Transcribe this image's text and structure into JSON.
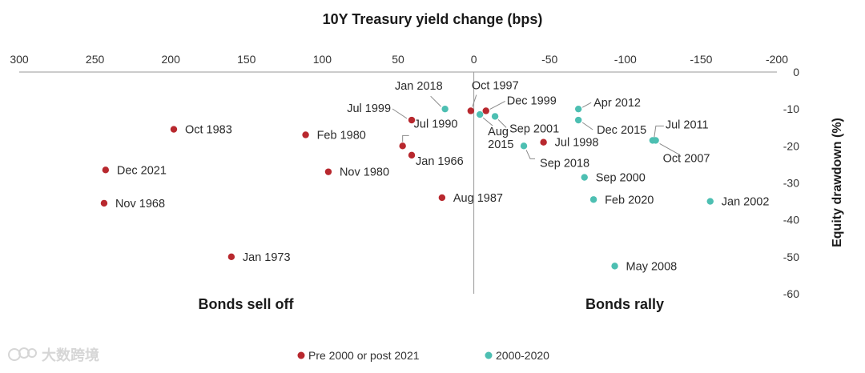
{
  "chart_data": {
    "type": "scatter",
    "title": "10Y Treasury yield change (bps)",
    "xlabel": "10Y Treasury yield change (bps)",
    "ylabel": "Equity drawdown (%)",
    "xlim": [
      300,
      -200
    ],
    "ylim": [
      -60,
      0
    ],
    "x_ticks": [
      "300",
      "250",
      "200",
      "150",
      "100",
      "50",
      "0",
      "-50",
      "-100",
      "-150",
      "-200"
    ],
    "y_ticks": [
      "0",
      "-10",
      "-20",
      "-30",
      "-40",
      "-50",
      "-60"
    ],
    "region_labels": {
      "left": "Bonds sell off",
      "right": "Bonds rally"
    },
    "legend": [
      {
        "name": "Pre 2000 or post 2021",
        "color": "#b8282e"
      },
      {
        "name": "2000-2020",
        "color": "#4dbfb2"
      }
    ],
    "series": [
      {
        "name": "Pre 2000 or post 2021",
        "color": "#b8282e",
        "points": [
          {
            "label": "Oct 1983",
            "x": 198,
            "y": -15.5
          },
          {
            "label": "Feb 1980",
            "x": 111,
            "y": -17
          },
          {
            "label": "Dec 2021",
            "x": 243,
            "y": -26.5
          },
          {
            "label": "Nov 1980",
            "x": 96,
            "y": -27
          },
          {
            "label": "Nov 1968",
            "x": 244,
            "y": -35.5
          },
          {
            "label": "Jan 1973",
            "x": 160,
            "y": -50
          },
          {
            "label": "Jul 1999",
            "x": 41,
            "y": -13
          },
          {
            "label": "Jul 1990",
            "x": 47,
            "y": -20
          },
          {
            "label": "Jan 1966",
            "x": 41,
            "y": -22.5
          },
          {
            "label": "Aug 1987",
            "x": 21,
            "y": -34
          },
          {
            "label": "Oct 1997",
            "x": 2,
            "y": -10.5
          },
          {
            "label": "Dec 1999",
            "x": -8,
            "y": -10.5
          },
          {
            "label": "Jul 1998",
            "x": -46,
            "y": -19
          }
        ]
      },
      {
        "name": "2000-2020",
        "color": "#4dbfb2",
        "points": [
          {
            "label": "Jan 2018",
            "x": 19,
            "y": -10
          },
          {
            "label": "Aug 2015",
            "x": -4,
            "y": -11.5
          },
          {
            "label": "Sep 2001",
            "x": -14,
            "y": -12
          },
          {
            "label": "Sep 2018",
            "x": -33,
            "y": -20
          },
          {
            "label": "Apr 2012",
            "x": -69,
            "y": -10
          },
          {
            "label": "Dec 2015",
            "x": -69,
            "y": -13
          },
          {
            "label": "Sep 2000",
            "x": -73,
            "y": -28.5
          },
          {
            "label": "Feb 2020",
            "x": -79,
            "y": -34.5
          },
          {
            "label": "Jul 2011",
            "x": -118,
            "y": -18.5
          },
          {
            "label": "Oct 2007",
            "x": -120,
            "y": -18.5
          },
          {
            "label": "Jan 2002",
            "x": -156,
            "y": -35
          },
          {
            "label": "May 2008",
            "x": -93,
            "y": -52.5
          }
        ]
      }
    ]
  },
  "watermark": {
    "text": "大数跨境"
  }
}
